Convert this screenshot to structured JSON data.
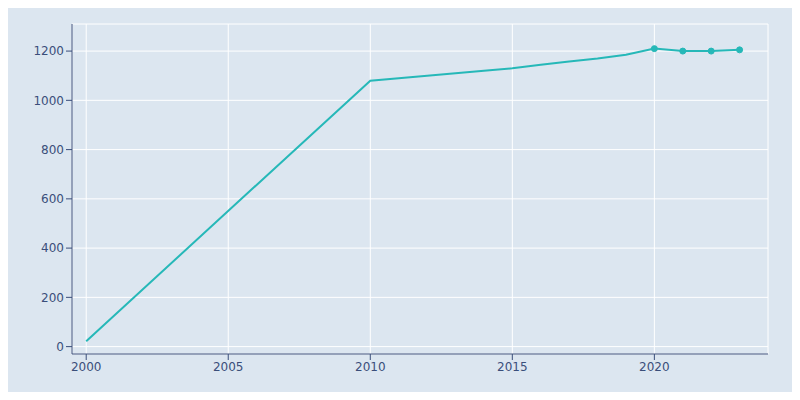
{
  "chart_data": {
    "type": "line",
    "x": [
      2000,
      2010,
      2011,
      2012,
      2013,
      2014,
      2015,
      2016,
      2017,
      2018,
      2019,
      2020,
      2021,
      2022,
      2023
    ],
    "series": [
      {
        "type": "line",
        "color": "#26b8b8",
        "values": [
          22,
          1080,
          1090,
          1100,
          1110,
          1120,
          1130,
          1145,
          1158,
          1170,
          1185,
          1210,
          1200,
          1200,
          1205
        ]
      },
      {
        "type": "scatter",
        "marker": "o",
        "color": "#26b8b8",
        "values": [
          null,
          null,
          null,
          null,
          null,
          null,
          null,
          null,
          null,
          null,
          null,
          1210,
          1200,
          1200,
          1205
        ]
      }
    ],
    "xlim": [
      1999.5,
      2024
    ],
    "ylim": [
      -30,
      1310
    ],
    "xticks": [
      2000,
      2005,
      2010,
      2015,
      2020
    ],
    "yticks": [
      0,
      200,
      400,
      600,
      800,
      1000,
      1200
    ],
    "grid": true
  }
}
